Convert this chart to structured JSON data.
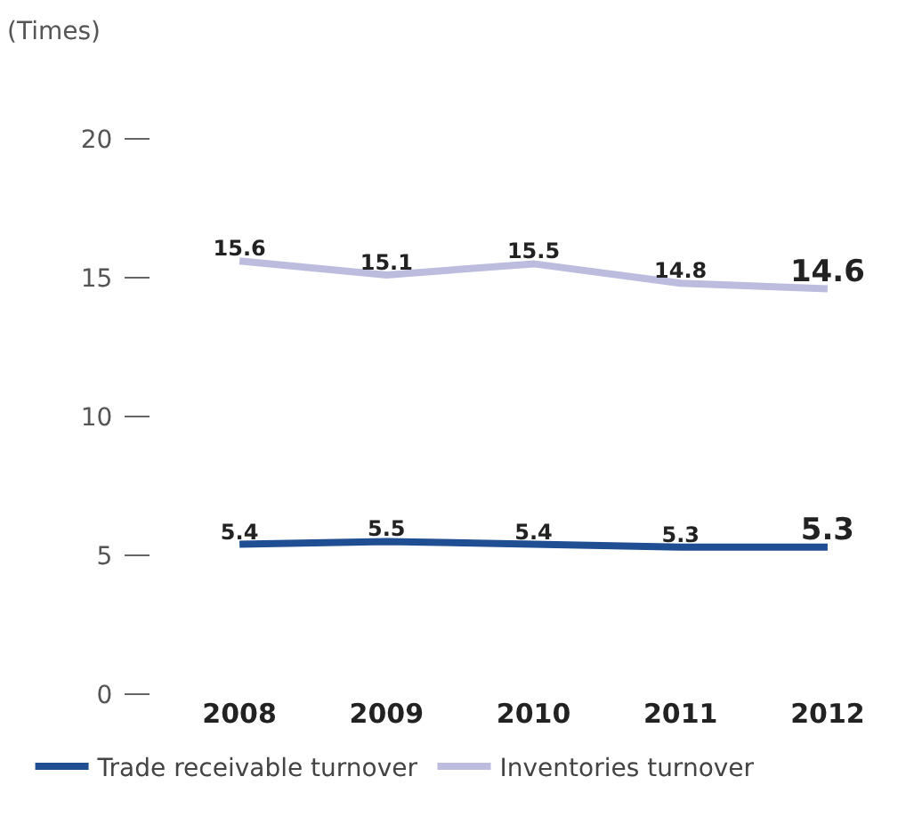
{
  "chart_data": {
    "type": "line",
    "ylabel": "(Times)",
    "categories": [
      "2008",
      "2009",
      "2010",
      "2011",
      "2012"
    ],
    "series": [
      {
        "name": "Trade receivable turnover",
        "color": "#1f4e93",
        "values": [
          5.4,
          5.5,
          5.4,
          5.3,
          5.3
        ]
      },
      {
        "name": "Inventories turnover",
        "color": "#bcbcdf",
        "values": [
          15.6,
          15.1,
          15.5,
          14.8,
          14.6
        ]
      }
    ],
    "ylim": [
      0,
      20
    ],
    "yticks": [
      0,
      5,
      10,
      15,
      20
    ],
    "grid": false,
    "legend": "bottom left",
    "data_labels": true
  }
}
